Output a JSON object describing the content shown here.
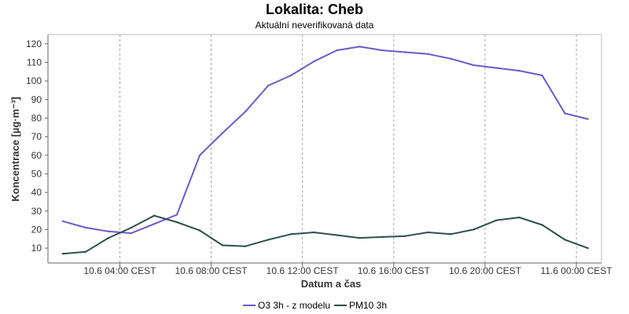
{
  "page": {
    "title": "Lokalita: Cheb",
    "subtitle": "Aktuální neverifikovaná data"
  },
  "colors": {
    "o3": "#6a5acd",
    "pm10": "#2f4f4f",
    "axis": "#666666",
    "grid": "#8f8f8f"
  },
  "chart_data": {
    "type": "line",
    "title": "Lokalita: Cheb",
    "subtitle": "Aktuální neverifikovaná data",
    "xlabel": "Datum a čas",
    "ylabel": "Koncentrace [µg·m⁻³]",
    "xunit": "hours",
    "xlim": [
      0.85,
      25.1
    ],
    "ylim": [
      2,
      125
    ],
    "y_ticks": [
      10,
      20,
      30,
      40,
      50,
      60,
      70,
      80,
      90,
      100,
      110,
      120
    ],
    "x_ticks": [
      {
        "value": 4,
        "label": "10.6 04:00 CEST"
      },
      {
        "value": 8,
        "label": "10.6 08:00 CEST"
      },
      {
        "value": 12,
        "label": "10.6 12:00 CEST"
      },
      {
        "value": 16,
        "label": "10.6 16:00 CEST"
      },
      {
        "value": 20,
        "label": "10.6 20:00 CEST"
      },
      {
        "value": 24,
        "label": "11.6 00:00 CEST"
      }
    ],
    "grid": true,
    "legend_position": "bottom",
    "series": [
      {
        "name": "O3 3h - z modelu",
        "color": "#6a5acd",
        "x": [
          1.5,
          2.5,
          3.5,
          4.5,
          5.5,
          6.5,
          7.5,
          8.5,
          9.5,
          10.5,
          11.5,
          12.5,
          13.5,
          14.5,
          15.5,
          16.5,
          17.5,
          18.5,
          19.5,
          20.5,
          21.5,
          22.5,
          23.5,
          24.5
        ],
        "values": [
          24.5,
          21,
          19,
          18,
          23,
          28,
          60,
          72,
          83.5,
          97.5,
          103,
          110.5,
          116.5,
          118.5,
          116.5,
          115.5,
          114.5,
          112,
          108.5,
          107,
          105.5,
          103,
          82.5,
          79.5
        ]
      },
      {
        "name": "PM10 3h",
        "color": "#2f4f4f",
        "x": [
          1.5,
          2.5,
          3.5,
          4.5,
          5.5,
          6.5,
          7.5,
          8.5,
          9.5,
          10.5,
          11.5,
          12.5,
          13.5,
          14.5,
          15.5,
          16.5,
          17.5,
          18.5,
          19.5,
          20.5,
          21.5,
          22.5,
          23.5,
          24.5
        ],
        "values": [
          7,
          8,
          15.5,
          21,
          27.5,
          24,
          19.5,
          11.5,
          11,
          14.5,
          17.5,
          18.5,
          17,
          15.5,
          16,
          16.5,
          18.5,
          17.5,
          20,
          25,
          26.5,
          22.5,
          14.5,
          10
        ]
      }
    ]
  }
}
